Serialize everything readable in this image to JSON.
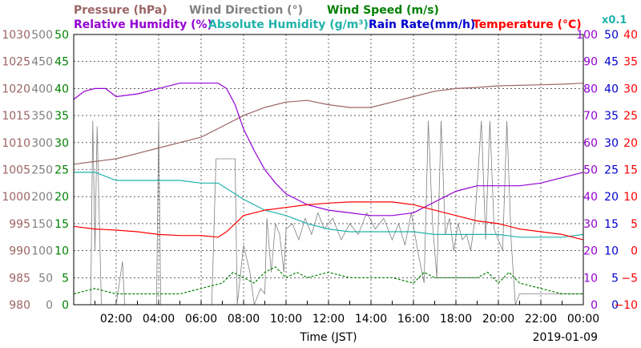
{
  "chart_data": {
    "type": "line",
    "xlabel": "Time (JST)",
    "date": "2019-01-09",
    "x_ticks": [
      "02:00",
      "04:00",
      "06:00",
      "08:00",
      "10:00",
      "12:00",
      "14:00",
      "16:00",
      "18:00",
      "20:00",
      "22:00",
      "00:00"
    ],
    "x_range_hours": [
      0,
      24
    ],
    "grid": true,
    "legend": {
      "row1": [
        {
          "name": "Pressure (hPa)",
          "color": "#9c6464"
        },
        {
          "name": "Wind Direction (°)",
          "color": "#808080"
        },
        {
          "name": "Wind Speed (m/s)",
          "color": "#008000"
        }
      ],
      "row2": [
        {
          "name": "Relative Humidity (%)",
          "color": "#9400d3"
        },
        {
          "name": "Absolute Humidity (g/m³)",
          "color": "#20b2aa"
        },
        {
          "name": "Rain Rate(mm/h)",
          "color": "#0000cd"
        },
        {
          "name": "Temperature (°C)",
          "color": "#ff0000"
        }
      ],
      "rain_scale_note": "x0.1"
    },
    "left_axes": [
      {
        "name": "Pressure",
        "color": "#9c6464",
        "ticks": [
          "1030",
          "1025",
          "1020",
          "1015",
          "1010",
          "1005",
          "1000",
          "995",
          "990",
          "985",
          "980"
        ]
      },
      {
        "name": "Wind Direction",
        "color": "#808080",
        "ticks": [
          "500",
          "450",
          "400",
          "350",
          "300",
          "250",
          "200",
          "150",
          "100",
          "50",
          "0"
        ]
      },
      {
        "name": "Wind Speed",
        "color": "#008000",
        "ticks": [
          "50",
          "45",
          "40",
          "35",
          "30",
          "25",
          "20",
          "15",
          "10",
          "5",
          "0"
        ]
      }
    ],
    "right_axes": [
      {
        "name": "Relative Humidity",
        "color": "#9400d3",
        "ticks": [
          "100",
          "90",
          "80",
          "70",
          "60",
          "50",
          "40",
          "30",
          "20",
          "10",
          "0"
        ]
      },
      {
        "name": "Rain Rate",
        "color": "#0000cd",
        "ticks": [
          "50",
          "45",
          "40",
          "35",
          "30",
          "25",
          "20",
          "15",
          "10",
          "5",
          "0"
        ]
      },
      {
        "name": "Temperature",
        "color": "#ff0000",
        "ticks": [
          "40",
          "35",
          "30",
          "25",
          "20",
          "15",
          "10",
          "5",
          "0",
          "−5",
          "−10"
        ]
      }
    ],
    "series": [
      {
        "name": "Pressure (hPa)",
        "color": "#9c6464",
        "axis": "pressure",
        "range": [
          980,
          1030
        ],
        "x": [
          0,
          1,
          2,
          3,
          4,
          5,
          6,
          7,
          8,
          9,
          10,
          11,
          12,
          13,
          14,
          15,
          16,
          17,
          18,
          19,
          20,
          21,
          22,
          23,
          24
        ],
        "y": [
          1006,
          1006.5,
          1007,
          1008,
          1009,
          1010,
          1011,
          1013,
          1015,
          1016.5,
          1017.5,
          1017.8,
          1017,
          1016.5,
          1016.5,
          1017.5,
          1018.5,
          1019.5,
          1020,
          1020.2,
          1020.5,
          1020.6,
          1020.7,
          1020.8,
          1021
        ]
      },
      {
        "name": "Relative Humidity (%)",
        "color": "#9400d3",
        "axis": "rh",
        "range": [
          0,
          100
        ],
        "x": [
          0,
          0.5,
          1,
          1.5,
          2,
          3,
          4,
          5,
          6,
          6.8,
          7.2,
          7.6,
          8,
          8.5,
          9,
          9.5,
          10,
          11,
          12,
          13,
          14,
          15,
          16,
          17,
          18,
          19,
          20,
          21,
          22,
          23,
          24
        ],
        "y": [
          76,
          79,
          80,
          80,
          77,
          78,
          80,
          82,
          82,
          82,
          80,
          74,
          65,
          57,
          50,
          45,
          41,
          37,
          35,
          34,
          33,
          33,
          34,
          38,
          42,
          44,
          44,
          44,
          45,
          47,
          49
        ]
      },
      {
        "name": "Absolute Humidity (g/m³)",
        "color": "#20b2aa",
        "axis": "abs_hum_x0.1",
        "range": [
          0,
          100
        ],
        "x": [
          0,
          1,
          2,
          3,
          4,
          5,
          6,
          6.8,
          7.2,
          7.6,
          8,
          9,
          10,
          11,
          12,
          13,
          14,
          15,
          16,
          17,
          18,
          19,
          20,
          21,
          22,
          23,
          24
        ],
        "y": [
          49,
          49,
          46,
          46,
          46,
          46,
          45,
          45,
          43,
          41,
          39,
          35,
          33,
          30,
          28,
          27,
          27,
          27,
          27,
          26,
          26,
          26,
          26,
          25,
          25,
          25,
          26
        ]
      },
      {
        "name": "Temperature (°C)",
        "color": "#ff0000",
        "axis": "temperature",
        "range": [
          -10,
          40
        ],
        "x": [
          0,
          1,
          2,
          3,
          4,
          5,
          6,
          6.8,
          7.2,
          7.6,
          8,
          9,
          10,
          11,
          12,
          13,
          14,
          15,
          16,
          17,
          18,
          19,
          20,
          21,
          22,
          23,
          24
        ],
        "y": [
          4.5,
          4,
          3.8,
          3.5,
          3,
          2.8,
          2.8,
          2.5,
          3.5,
          5,
          6.5,
          7.5,
          8,
          8.5,
          8.8,
          9,
          9,
          9,
          8.5,
          7.5,
          6.5,
          5.5,
          5,
          4,
          3.5,
          3,
          2
        ]
      },
      {
        "name": "Wind Direction (°)",
        "color": "#808080",
        "axis": "wind_dir",
        "range": [
          0,
          500
        ],
        "x": [
          0,
          0.8,
          0.9,
          1.0,
          1.1,
          1.3,
          1.6,
          2.0,
          2.3,
          2.4,
          2.5,
          2.8,
          3.0,
          3.5,
          3.9,
          4.0,
          4.1,
          4.5,
          5.0,
          5.5,
          6.0,
          6.5,
          6.7,
          6.8,
          7.6,
          7.7,
          8.0,
          8.3,
          8.5,
          8.8,
          9.0,
          9.1,
          9.3,
          9.5,
          9.7,
          9.9,
          10.0,
          10.3,
          10.6,
          10.9,
          11.2,
          11.5,
          11.8,
          12.2,
          12.6,
          13.0,
          13.4,
          13.8,
          14.2,
          14.6,
          15.0,
          15.3,
          15.6,
          15.9,
          16.2,
          16.5,
          16.7,
          16.9,
          17.1,
          17.3,
          17.5,
          17.7,
          17.9,
          18.1,
          18.3,
          18.5,
          18.7,
          18.9,
          19.2,
          19.4,
          19.6,
          19.8,
          20.0,
          20.2,
          20.4,
          20.6,
          20.8,
          21.0,
          21.5,
          22.0,
          23.0,
          24.0
        ],
        "y": [
          0,
          0,
          340,
          100,
          330,
          0,
          0,
          0,
          80,
          0,
          0,
          0,
          0,
          0,
          0,
          340,
          0,
          0,
          0,
          0,
          0,
          0,
          270,
          270,
          270,
          0,
          110,
          60,
          0,
          30,
          20,
          160,
          60,
          150,
          130,
          60,
          140,
          150,
          120,
          160,
          130,
          170,
          140,
          160,
          120,
          150,
          130,
          170,
          140,
          160,
          120,
          150,
          110,
          170,
          100,
          40,
          340,
          150,
          50,
          340,
          130,
          160,
          100,
          150,
          120,
          130,
          100,
          160,
          340,
          120,
          340,
          140,
          120,
          100,
          340,
          120,
          0,
          20,
          20,
          20,
          20,
          20
        ]
      },
      {
        "name": "Wind Speed (m/s)",
        "color": "#008000",
        "axis": "wind_speed",
        "range": [
          0,
          50
        ],
        "x": [
          0,
          1,
          2,
          3,
          4,
          5,
          6,
          7,
          7.5,
          8,
          8.5,
          9,
          9.5,
          10,
          10.5,
          11,
          12,
          13,
          14,
          15,
          16,
          16.5,
          17,
          18,
          19,
          19.5,
          20,
          20.5,
          21,
          22,
          23,
          24
        ],
        "y": [
          2,
          3,
          2,
          2,
          2,
          2,
          3,
          4,
          6,
          5,
          4,
          6,
          7,
          5,
          6,
          5,
          6,
          5,
          5,
          5,
          4,
          6,
          5,
          5,
          5,
          6,
          4,
          6,
          4,
          3,
          2,
          2
        ]
      }
    ]
  }
}
